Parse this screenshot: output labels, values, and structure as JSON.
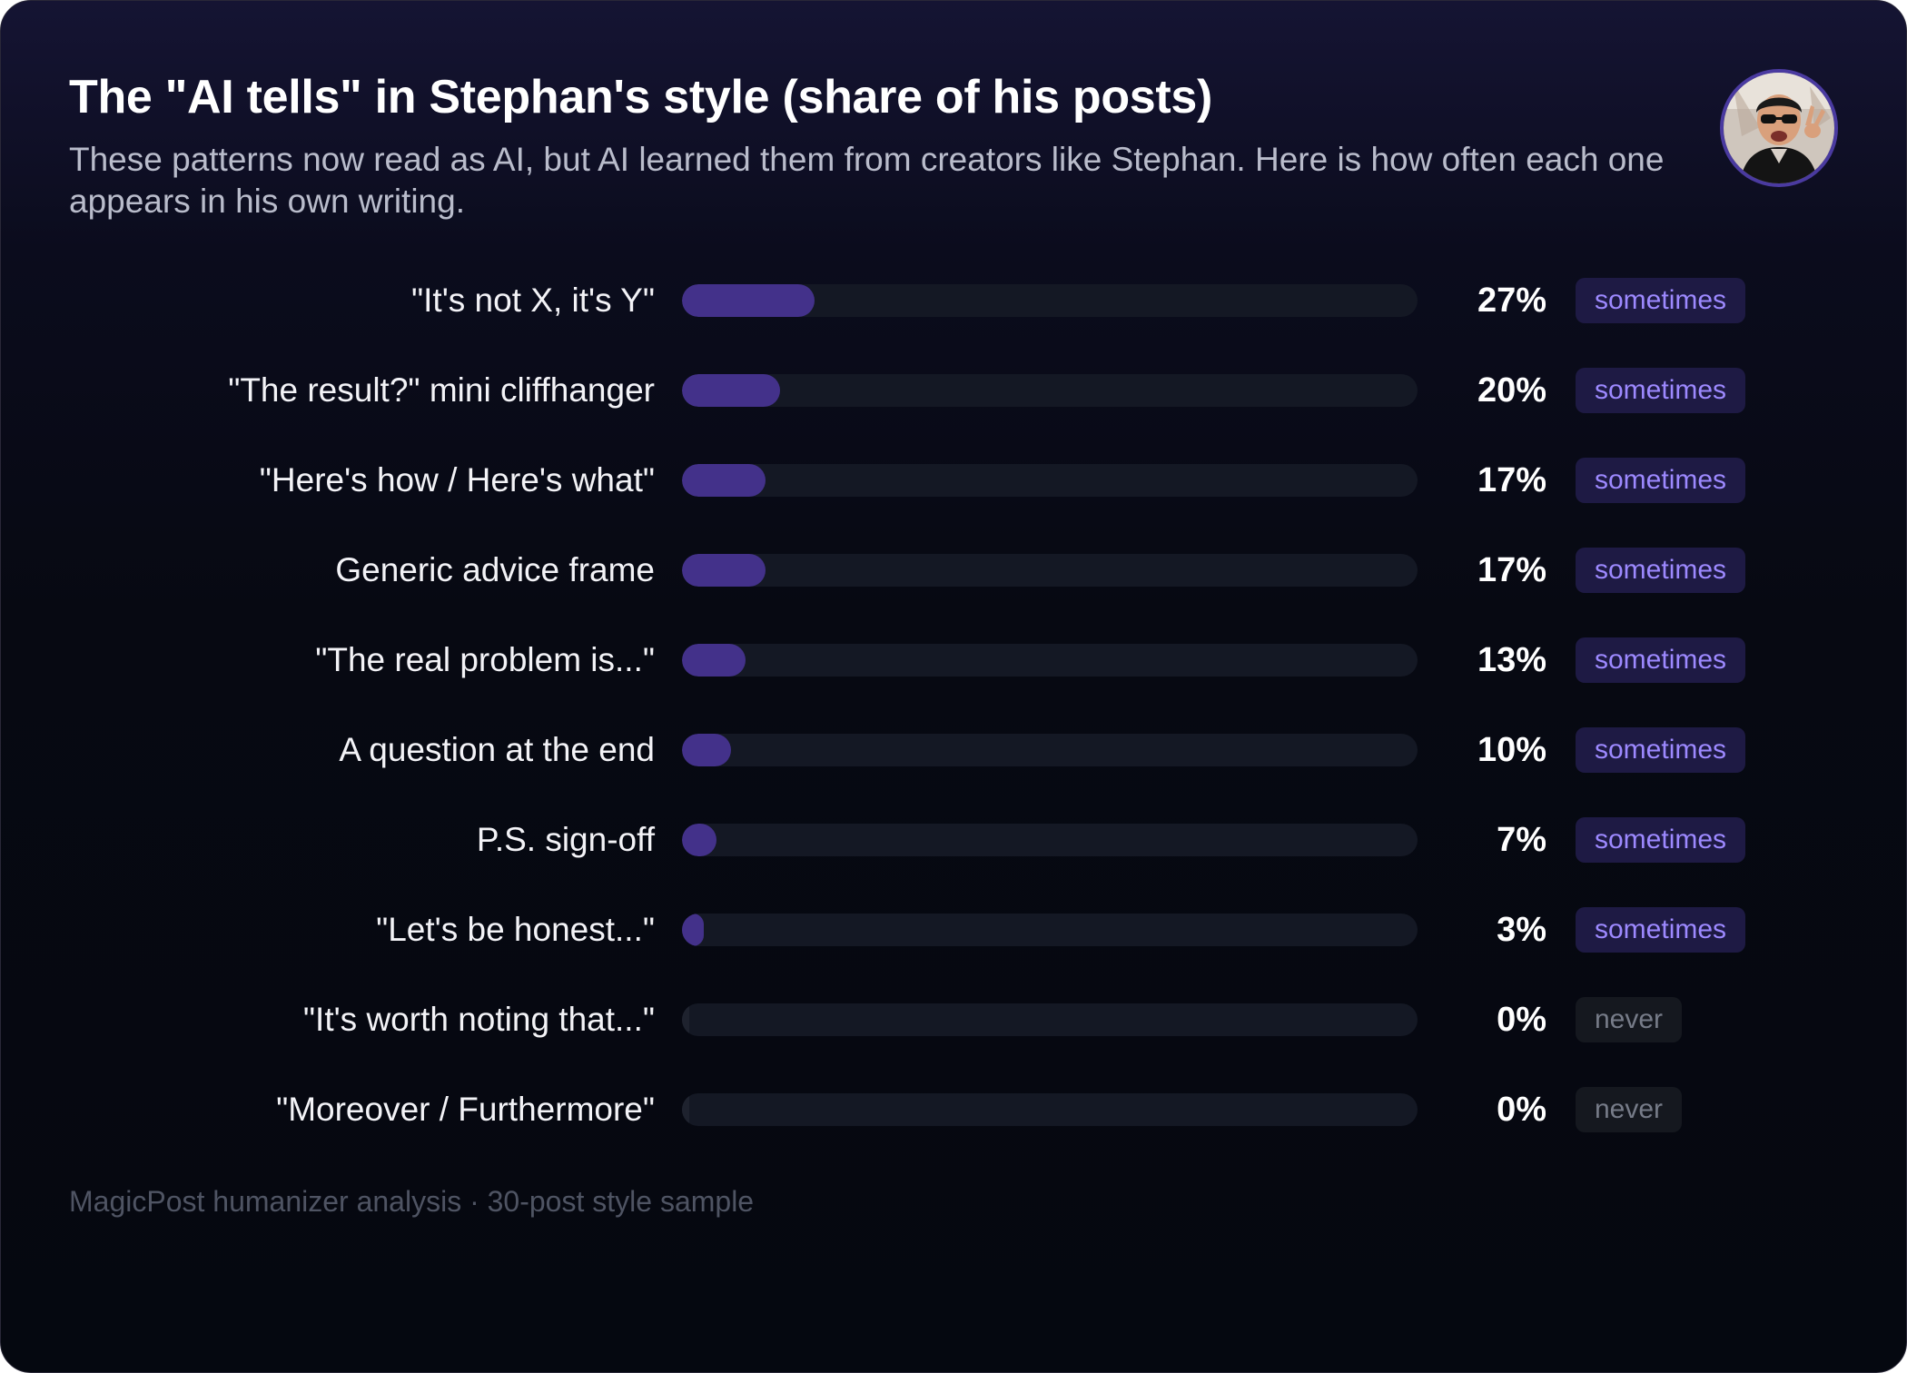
{
  "header": {
    "title": "The \"AI tells\" in Stephan's style (share of his posts)",
    "subtitle": "These patterns now read as AI, but AI learned them from creators like Stephan. Here is how often each one appears in his own writing."
  },
  "avatar": {
    "icon": "profile-photo-avatar"
  },
  "footer": {
    "note": "MagicPost humanizer analysis · 30-post style sample"
  },
  "colors": {
    "bar_fill": "#43318a",
    "bar_track": "#141824",
    "badge_sometimes_bg": "#1e1a44",
    "badge_sometimes_text": "#9d89ff",
    "badge_never_bg": "#15181f",
    "badge_never_text": "#767b88"
  },
  "chart_data": {
    "type": "bar",
    "orientation": "horizontal",
    "title": "The \"AI tells\" in Stephan's style (share of his posts)",
    "xlim": [
      0,
      100
    ],
    "grid": false,
    "legend": "none",
    "categories": [
      "\"It's not X, it's Y\"",
      "\"The result?\" mini cliffhanger",
      "\"Here's how / Here's what\"",
      "Generic advice frame",
      "\"The real problem is...\"",
      "A question at the end",
      "P.S. sign-off",
      "\"Let's be honest...\"",
      "\"It's worth noting that...\"",
      "\"Moreover / Furthermore\""
    ],
    "values": [
      27,
      20,
      17,
      17,
      13,
      10,
      7,
      3,
      0,
      0
    ],
    "value_labels": [
      "27%",
      "20%",
      "17%",
      "17%",
      "13%",
      "10%",
      "7%",
      "3%",
      "0%",
      "0%"
    ],
    "frequency_tags": [
      "sometimes",
      "sometimes",
      "sometimes",
      "sometimes",
      "sometimes",
      "sometimes",
      "sometimes",
      "sometimes",
      "never",
      "never"
    ]
  }
}
